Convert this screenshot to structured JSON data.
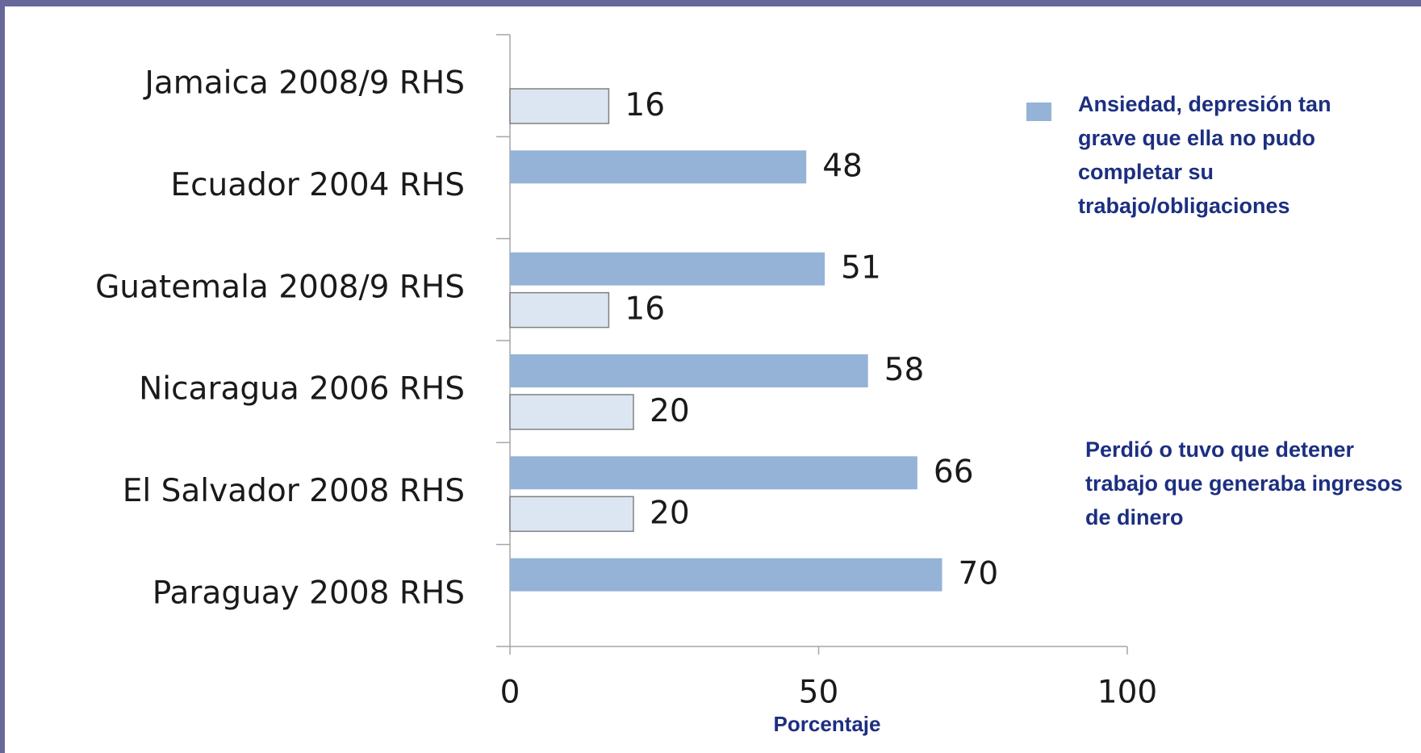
{
  "chart_data": {
    "type": "bar",
    "orientation": "horizontal",
    "categories": [
      "Jamaica 2008/9 RHS",
      "Ecuador 2004 RHS",
      "Guatemala 2008/9 RHS",
      "Nicaragua 2006 RHS",
      "El Salvador 2008 RHS",
      "Paraguay 2008 RHS"
    ],
    "series": [
      {
        "name": "Ansiedad, depresión tan grave que ella no pudo completar su trabajo/obligaciones",
        "color": "#95b3d7",
        "values": [
          null,
          48,
          51,
          58,
          66,
          70
        ]
      },
      {
        "name": "Perdió o tuvo que detener trabajo que generaba ingresos de dinero",
        "color": "#dce6f2",
        "values": [
          16,
          null,
          16,
          20,
          20,
          null
        ]
      }
    ],
    "xlabel": "Porcentaje",
    "xlim": [
      0,
      100
    ],
    "xticks": [
      0,
      50,
      100
    ]
  }
}
